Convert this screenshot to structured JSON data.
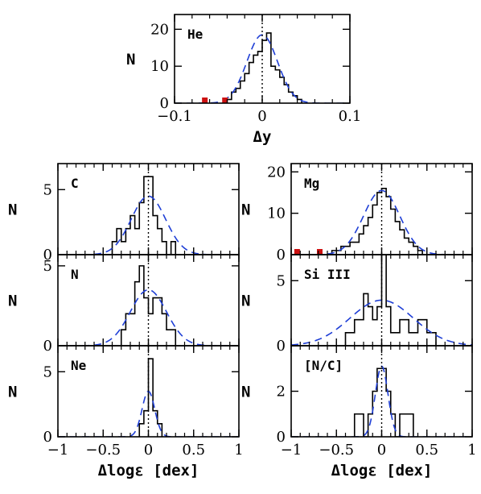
{
  "chart_data": [
    {
      "id": "he",
      "type": "histogram",
      "label": "He",
      "xlabel": "Δy",
      "ylabel": "N",
      "xlim": [
        -0.1,
        0.1
      ],
      "ylim": [
        0,
        24
      ],
      "xticks": [
        -0.1,
        0,
        0.1
      ],
      "yticks": [
        0,
        10,
        20
      ],
      "xticklabels": [
        "−0.1",
        "0",
        "0.1"
      ],
      "yticklabels": [
        "0",
        "10",
        "20"
      ],
      "bin_edges": [
        -0.04,
        -0.035,
        -0.03,
        -0.025,
        -0.02,
        -0.015,
        -0.01,
        -0.005,
        0,
        0.005,
        0.01,
        0.015,
        0.02,
        0.025,
        0.03,
        0.035,
        0.04,
        0.045
      ],
      "counts": [
        1,
        3,
        4,
        6,
        8,
        11,
        13,
        14,
        17,
        19,
        10,
        9,
        7,
        5,
        3,
        2,
        1
      ],
      "gauss": {
        "amp": 18.5,
        "mu": 0.0,
        "sigma": 0.0175
      },
      "markers": [
        -0.065,
        -0.042
      ]
    },
    {
      "id": "c",
      "type": "histogram",
      "label": "C",
      "xlabel": "",
      "ylabel": "N",
      "xlim": [
        -1,
        1
      ],
      "ylim": [
        0,
        7
      ],
      "xticks": [
        -1,
        -0.5,
        0,
        0.5,
        1
      ],
      "yticks": [
        0,
        5
      ],
      "xticklabels": [],
      "yticklabels": [
        "0",
        "5"
      ],
      "bin_edges": [
        -0.4,
        -0.35,
        -0.3,
        -0.25,
        -0.2,
        -0.15,
        -0.1,
        -0.05,
        0,
        0.05,
        0.1,
        0.15,
        0.2,
        0.25,
        0.3
      ],
      "counts": [
        1,
        2,
        1,
        2,
        3,
        2,
        4,
        6,
        6,
        3,
        2,
        1,
        0,
        1
      ],
      "gauss": {
        "amp": 4.5,
        "mu": 0.0,
        "sigma": 0.19
      },
      "markers": []
    },
    {
      "id": "n",
      "type": "histogram",
      "label": "N",
      "xlabel": "",
      "ylabel": "N",
      "xlim": [
        -1,
        1
      ],
      "ylim": [
        0,
        5.7
      ],
      "xticks": [
        -1,
        -0.5,
        0,
        0.5,
        1
      ],
      "yticks": [
        0,
        5
      ],
      "xticklabels": [],
      "yticklabels": [
        "0",
        "5"
      ],
      "bin_edges": [
        -0.3,
        -0.25,
        -0.2,
        -0.15,
        -0.1,
        -0.05,
        0,
        0.05,
        0.1,
        0.15,
        0.2,
        0.25,
        0.3
      ],
      "counts": [
        1,
        2,
        2,
        4,
        5,
        3,
        2,
        3,
        3,
        2,
        1,
        1
      ],
      "gauss": {
        "amp": 3.5,
        "mu": 0.0,
        "sigma": 0.2
      },
      "markers": []
    },
    {
      "id": "ne",
      "type": "histogram",
      "label": "Ne",
      "xlabel": "Δlogε [dex]",
      "ylabel": "N",
      "xlim": [
        -1,
        1
      ],
      "ylim": [
        0,
        7
      ],
      "xticks": [
        -1,
        -0.5,
        0,
        0.5,
        1
      ],
      "yticks": [
        0,
        5
      ],
      "xticklabels": [
        "−1",
        "−0.5",
        "0",
        "0.5",
        "1"
      ],
      "yticklabels": [
        "0",
        "5"
      ],
      "bin_edges": [
        -0.1,
        -0.05,
        0,
        0.05,
        0.1,
        0.15
      ],
      "counts": [
        1,
        2,
        6,
        2,
        1
      ],
      "gauss": {
        "amp": 3.5,
        "mu": 0.0,
        "sigma": 0.07
      },
      "markers": []
    },
    {
      "id": "mg",
      "type": "histogram",
      "label": "Mg",
      "xlabel": "",
      "ylabel": "N",
      "xlim": [
        -1,
        1
      ],
      "ylim": [
        0,
        22
      ],
      "xticks": [
        -1,
        -0.5,
        0,
        0.5,
        1
      ],
      "yticks": [
        0,
        10,
        20
      ],
      "xticklabels": [],
      "yticklabels": [
        "0",
        "10",
        "20"
      ],
      "bin_edges": [
        -0.55,
        -0.5,
        -0.45,
        -0.4,
        -0.35,
        -0.3,
        -0.25,
        -0.2,
        -0.15,
        -0.1,
        -0.05,
        0,
        0.05,
        0.1,
        0.15,
        0.2,
        0.25,
        0.3,
        0.35,
        0.4,
        0.45
      ],
      "counts": [
        1,
        1,
        2,
        2,
        3,
        3,
        5,
        7,
        9,
        12,
        15,
        16,
        14,
        11,
        8,
        6,
        4,
        3,
        2,
        1
      ],
      "gauss": {
        "amp": 15.5,
        "mu": 0.0,
        "sigma": 0.2
      },
      "markers": [
        -0.93,
        -0.68
      ]
    },
    {
      "id": "si",
      "type": "histogram",
      "label": "Si III",
      "xlabel": "",
      "ylabel": "N",
      "xlim": [
        -1,
        1
      ],
      "ylim": [
        0,
        7
      ],
      "xticks": [
        -1,
        -0.5,
        0,
        0.5,
        1
      ],
      "yticks": [
        0,
        5
      ],
      "xticklabels": [],
      "yticklabels": [
        "0",
        "5"
      ],
      "bin_edges": [
        -0.4,
        -0.3,
        -0.2,
        -0.15,
        -0.1,
        -0.05,
        0,
        0.05,
        0.1,
        0.2,
        0.3,
        0.4,
        0.5,
        0.6
      ],
      "counts": [
        1,
        2,
        4,
        3,
        2,
        3,
        7,
        3,
        1,
        2,
        1,
        2,
        1
      ],
      "gauss": {
        "amp": 3.5,
        "mu": 0.0,
        "sigma": 0.35
      },
      "markers": []
    },
    {
      "id": "nc",
      "type": "histogram",
      "label": "[N/C]",
      "xlabel": "Δlogε [dex]",
      "ylabel": "N",
      "xlim": [
        -1,
        1
      ],
      "ylim": [
        0,
        4
      ],
      "xticks": [
        -1,
        -0.5,
        0,
        0.5,
        1
      ],
      "yticks": [
        0,
        2
      ],
      "xticklabels": [
        "−1",
        "−0.5",
        "0",
        "0.5",
        "1"
      ],
      "yticklabels": [
        "0",
        "2"
      ],
      "bin_edges": [
        -0.3,
        -0.25,
        -0.2,
        -0.15,
        -0.1,
        -0.05,
        0,
        0.05,
        0.1,
        0.15,
        0.2,
        0.25,
        0.3,
        0.35
      ],
      "counts": [
        1,
        1,
        0,
        1,
        2,
        3,
        3,
        2,
        1,
        0,
        1,
        1,
        1
      ],
      "gauss": {
        "amp": 3.1,
        "mu": 0.0,
        "sigma": 0.07
      },
      "markers": []
    }
  ]
}
